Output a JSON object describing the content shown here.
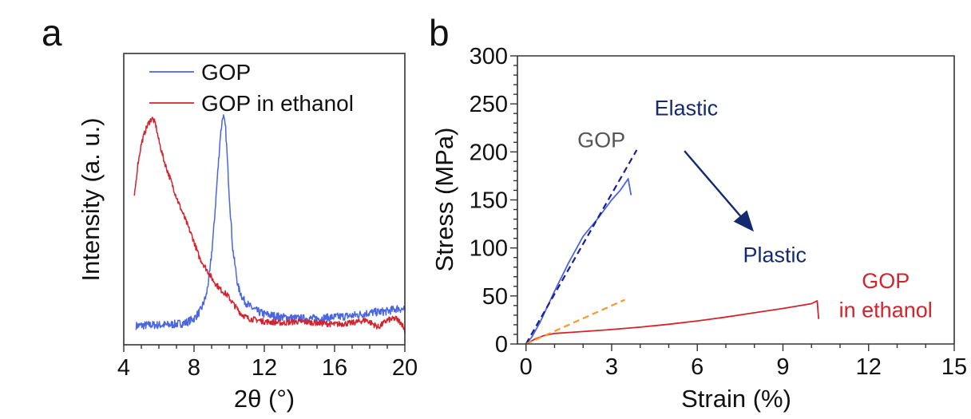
{
  "panels": {
    "a_label": "a",
    "b_label": "b"
  },
  "chart_data": [
    {
      "id": "a",
      "type": "line",
      "title": "",
      "xlabel": "2θ (°)",
      "ylabel": "Intensity (a. u.)",
      "xlim": [
        4,
        20
      ],
      "ylim": [
        0,
        100
      ],
      "xticks": [
        4,
        8,
        12,
        16,
        20
      ],
      "xtick_labels": [
        "4",
        "8",
        "12",
        "16",
        "20"
      ],
      "x_minor_step": 1,
      "yticks": [],
      "grid": false,
      "legend": {
        "placement": "top-left",
        "entries": [
          {
            "label": "GOP",
            "color": "#4a66e0"
          },
          {
            "label": "GOP in ethanol",
            "color": "#d3242d"
          }
        ]
      },
      "series": [
        {
          "name": "GOP",
          "color": "#4a66e0",
          "noise": 1.4,
          "x": [
            4.7,
            5.5,
            6.5,
            7.5,
            8.0,
            8.4,
            8.7,
            8.9,
            9.1,
            9.3,
            9.5,
            9.65,
            9.8,
            10.0,
            10.2,
            10.5,
            10.8,
            11.2,
            11.6,
            12.0,
            13.0,
            14.0,
            15.0,
            16.0,
            17.0,
            18.0,
            19.0,
            19.6,
            20.0
          ],
          "y": [
            6.5,
            6.8,
            6.8,
            7.5,
            9.0,
            12.0,
            17.0,
            25.0,
            38.0,
            55.0,
            72.0,
            79.0,
            74.0,
            52.0,
            33.0,
            20.0,
            15.5,
            13.0,
            11.5,
            10.5,
            9.5,
            9.0,
            9.0,
            9.5,
            10.0,
            11.0,
            11.5,
            12.5,
            12.0
          ]
        },
        {
          "name": "GOP in ethanol",
          "color": "#d3242d",
          "noise": 1.0,
          "x": [
            4.6,
            4.8,
            5.0,
            5.2,
            5.4,
            5.6,
            5.8,
            6.0,
            6.3,
            6.7,
            7.1,
            7.5,
            7.9,
            8.3,
            8.7,
            9.1,
            9.5,
            9.9,
            10.3,
            10.7,
            11.1,
            11.6,
            12.0,
            13.0,
            14.0,
            15.0,
            16.0,
            17.0,
            17.8,
            18.5,
            19.0,
            19.5,
            19.8,
            20.0
          ],
          "y": [
            50.5,
            62.0,
            69.0,
            73.0,
            76.0,
            77.8,
            76.0,
            70.0,
            63.0,
            56.0,
            49.0,
            43.0,
            37.0,
            30.0,
            26.0,
            22.0,
            19.0,
            17.0,
            13.5,
            10.5,
            9.0,
            8.5,
            8.0,
            7.5,
            8.0,
            7.5,
            7.0,
            7.5,
            8.5,
            6.0,
            8.5,
            9.0,
            7.5,
            5.0
          ]
        }
      ]
    },
    {
      "id": "b",
      "type": "line",
      "title": "",
      "xlabel": "Strain (%)",
      "ylabel": "Stress (MPa)",
      "xlim": [
        -0.3,
        15
      ],
      "ylim": [
        0,
        300
      ],
      "xticks": [
        0,
        3,
        6,
        9,
        12,
        15
      ],
      "xtick_labels": [
        "0",
        "3",
        "6",
        "9",
        "12",
        "15"
      ],
      "x_minor_step": 1,
      "yticks": [
        0,
        50,
        100,
        150,
        200,
        250,
        300
      ],
      "ytick_labels": [
        "0",
        "50",
        "100",
        "150",
        "200",
        "250",
        "300"
      ],
      "y_minor_step": 10,
      "grid": false,
      "series": [
        {
          "name": "GOP",
          "style": "solid",
          "color": "#4a66e0",
          "x": [
            0,
            0.2,
            0.5,
            1.0,
            1.5,
            2.0,
            2.5,
            3.0,
            3.3,
            3.58,
            3.68
          ],
          "y": [
            0,
            7,
            23,
            55,
            85,
            112,
            130,
            150,
            160,
            172,
            155
          ]
        },
        {
          "name": "GOP in ethanol",
          "style": "solid",
          "color": "#d3242d",
          "x": [
            0,
            0.3,
            0.6,
            1.0,
            1.5,
            2.0,
            3.0,
            4.0,
            5.0,
            6.0,
            7.0,
            8.0,
            9.0,
            10.0,
            10.2,
            10.25
          ],
          "y": [
            0,
            5,
            8.5,
            11,
            12,
            13,
            15,
            17.5,
            20.5,
            24,
            28,
            32.5,
            37,
            42,
            45,
            26
          ]
        },
        {
          "name": "GOP elastic fit",
          "style": "dashed",
          "color": "#1a1f8f",
          "x": [
            0,
            3.88
          ],
          "y": [
            0,
            202
          ]
        },
        {
          "name": "GOP in ethanol elastic fit",
          "style": "dashed",
          "color": "#f39a2a",
          "x": [
            0,
            3.46
          ],
          "y": [
            0,
            46
          ]
        }
      ],
      "annotations": [
        {
          "id": "gop",
          "text": "GOP",
          "color": "#555555",
          "x": 1.8,
          "y": 205
        },
        {
          "id": "elastic",
          "text": "Elastic",
          "color": "#142a6e",
          "x": 4.5,
          "y": 238
        },
        {
          "id": "plastic",
          "text": "Plastic",
          "color": "#142a6e",
          "x": 7.6,
          "y": 85
        },
        {
          "id": "gop-ethanol-1",
          "text": "GOP",
          "color": "#d3242d",
          "x": 12.6,
          "y": 58
        },
        {
          "id": "gop-ethanol-2",
          "text": "in ethanol",
          "color": "#d3242d",
          "x": 12.6,
          "y": 28
        }
      ],
      "arrow": {
        "from": [
          5.55,
          201
        ],
        "to": [
          7.98,
          117
        ],
        "color": "#142a6e"
      }
    }
  ]
}
